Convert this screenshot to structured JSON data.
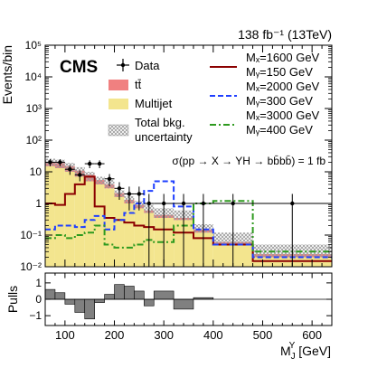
{
  "header": {
    "lumi_label": "138 fb⁻¹ (13TeV)",
    "experiment": "CMS"
  },
  "legend_left": [
    {
      "key": "data",
      "label": "Data"
    },
    {
      "key": "ttbar",
      "label": "tt̄"
    },
    {
      "key": "multijet",
      "label": "Multijet"
    },
    {
      "key": "unc1",
      "label": "Total bkg."
    },
    {
      "key": "unc2",
      "label": "uncertainty"
    }
  ],
  "legend_right": [
    {
      "key": "sig1600",
      "mx": "Mₓ=1600 GeV",
      "my": "Mᵧ=150 GeV"
    },
    {
      "key": "sig2000",
      "mx": "Mₓ=2000 GeV",
      "my": "Mᵧ=300 GeV"
    },
    {
      "key": "sig3000",
      "mx": "Mₓ=3000 GeV",
      "my": "Mᵧ=400 GeV"
    }
  ],
  "annotation": "σ(pp → X → YH → bb̄bb̄) = 1 fb",
  "colors": {
    "ttbar": "#f08080",
    "multijet": "#f3e58e",
    "sig1600": "#8b0000",
    "sig2000": "#1f3fff",
    "sig3000": "#2e9a1f",
    "pulls": "#808080",
    "data": "#000000"
  },
  "chart_data": [
    {
      "type": "histogram",
      "ylabel": "Events/bin",
      "yscale": "log",
      "ylim": [
        0.01,
        100000
      ],
      "y_ticks": [
        "10⁻²",
        "10⁻¹",
        "1",
        "10",
        "10²",
        "10³",
        "10⁴",
        "10⁵"
      ],
      "xlim": [
        60,
        640
      ],
      "bin_edges": [
        60,
        80,
        100,
        120,
        140,
        160,
        180,
        200,
        220,
        240,
        260,
        280,
        320,
        360,
        400,
        480,
        640
      ],
      "multijet": [
        15,
        13,
        10,
        7,
        5,
        4,
        3,
        1.6,
        1.0,
        0.7,
        0.5,
        0.35,
        0.3,
        0.12,
        0.05,
        0.02
      ],
      "ttbar": [
        5,
        6,
        5,
        4,
        3,
        1.5,
        1,
        0.5,
        0.3,
        0.2,
        0.1,
        0.08,
        0.05,
        0.03,
        0.01,
        0.005
      ],
      "data": [
        {
          "x": 70,
          "y": 20,
          "err": 5
        },
        {
          "x": 90,
          "y": 20,
          "err": 5
        },
        {
          "x": 110,
          "y": 12,
          "err": 4
        },
        {
          "x": 130,
          "y": 8,
          "err": 3
        },
        {
          "x": 150,
          "y": 18,
          "err": 5
        },
        {
          "x": 170,
          "y": 18,
          "err": 5
        },
        {
          "x": 190,
          "y": 6,
          "err": 2.5
        },
        {
          "x": 210,
          "y": 3,
          "err": 1.7
        },
        {
          "x": 230,
          "y": 2,
          "err": 1.4
        },
        {
          "x": 250,
          "y": 2,
          "err": 1.4
        },
        {
          "x": 270,
          "y": 1,
          "err": 1.0
        },
        {
          "x": 300,
          "y": 1,
          "err": 1.0
        },
        {
          "x": 340,
          "y": 1,
          "err": 1.0
        },
        {
          "x": 380,
          "y": 1,
          "err": 1.0
        },
        {
          "x": 440,
          "y": 1,
          "err": 1.0
        },
        {
          "x": 560,
          "y": 1,
          "err": 1.0
        }
      ],
      "series": [
        {
          "key": "sig1600",
          "style": "solid",
          "values": [
            1.0,
            0.9,
            2.0,
            4.0,
            7.0,
            0.8,
            0.35,
            0.3,
            0.25,
            0.2,
            0.18,
            0.15,
            0.12,
            0.08,
            0.05,
            0.015
          ]
        },
        {
          "key": "sig2000",
          "style": "dashed",
          "values": [
            0.15,
            0.2,
            0.2,
            0.18,
            0.3,
            0.4,
            0.15,
            0.3,
            0.5,
            1.0,
            2.5,
            5.0,
            0.8,
            0.15,
            0.05,
            0.02
          ]
        },
        {
          "key": "sig3000",
          "style": "dashdot",
          "values": [
            0.08,
            0.1,
            0.08,
            0.1,
            0.12,
            0.2,
            0.05,
            0.04,
            0.04,
            0.05,
            0.07,
            0.06,
            0.2,
            1.0,
            1.2,
            0.03
          ]
        }
      ],
      "uncertainty_bands": [
        {
          "low": 15,
          "high": 26
        },
        {
          "low": 13,
          "high": 24
        },
        {
          "low": 10,
          "high": 19
        },
        {
          "low": 7,
          "high": 14
        },
        {
          "low": 5,
          "high": 10
        },
        {
          "low": 4,
          "high": 7
        },
        {
          "low": 3,
          "high": 5.5
        },
        {
          "low": 1.6,
          "high": 2.6
        },
        {
          "low": 1.0,
          "high": 1.7
        },
        {
          "low": 0.7,
          "high": 1.2
        },
        {
          "low": 0.5,
          "high": 0.9
        },
        {
          "low": 0.35,
          "high": 0.7
        },
        {
          "low": 0.3,
          "high": 0.6
        },
        {
          "low": 0.12,
          "high": 0.22
        },
        {
          "low": 0.05,
          "high": 0.12
        },
        {
          "low": 0.02,
          "high": 0.05
        }
      ]
    },
    {
      "type": "bar",
      "ylabel": "Pulls",
      "ylim": [
        -1.6,
        1.6
      ],
      "y_ticks": [
        "−1",
        "0",
        "1"
      ],
      "x_ticks": [
        "100",
        "200",
        "300",
        "400",
        "500",
        "600"
      ],
      "xlabel": "M",
      "xlabel_sup": "Y",
      "xlabel_sub": "J",
      "xlabel_unit": " [GeV]",
      "values": [
        0.6,
        0.4,
        -0.3,
        -0.8,
        -1.2,
        -0.2,
        0.3,
        0.9,
        0.8,
        0.5,
        -0.4,
        0.5,
        -0.6,
        0.1,
        0.0,
        0.0
      ]
    }
  ]
}
